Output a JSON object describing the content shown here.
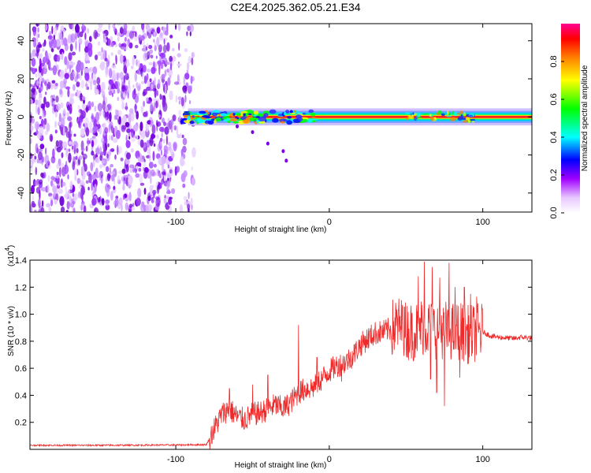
{
  "chart_data": [
    {
      "type": "heatmap",
      "title": "C2E4.2025.362.05.21.E34",
      "xlabel": "Height of straight line (km)",
      "ylabel": "Frequency (Hz)",
      "xlim": [
        -195,
        132
      ],
      "ylim": [
        -50,
        49
      ],
      "xticks": [
        -100,
        0,
        100
      ],
      "xtick_labels": [
        "-100",
        "0",
        "100"
      ],
      "yticks": [
        -40,
        -20,
        0,
        20,
        40
      ],
      "ytick_labels": [
        "-40",
        "-20",
        "0",
        "20",
        "40"
      ],
      "signal": {
        "description_values": "scattered purple speckles below -92 km; strong tonal line at 0 Hz from -95 km to right edge",
        "noise_x_range": [
          -195,
          -88
        ],
        "tone_x_range": [
          -95,
          132
        ],
        "tone_frequency": 0,
        "chirp_points": [
          [
            -60,
            -5
          ],
          [
            -50,
            -8
          ],
          [
            -40,
            -14
          ],
          [
            -30,
            -18
          ],
          [
            -28,
            -23
          ]
        ]
      },
      "colorbar": {
        "label": "Normalized spectral amplitude",
        "range": [
          0,
          1
        ],
        "ticks": [
          0.0,
          0.2,
          0.4,
          0.6,
          0.8
        ],
        "tick_labels": [
          "0.0",
          "0.2",
          "0.4",
          "0.6",
          "0.8"
        ],
        "colors": [
          "#ffffff",
          "#b000ff",
          "#0000ff",
          "#00ffff",
          "#00ff00",
          "#ffff00",
          "#ff8000",
          "#ff0000",
          "#ff0080"
        ]
      }
    },
    {
      "type": "line",
      "xlabel": "Height of straight line (km)",
      "ylabel": "SNR (10 * v/v)",
      "exponent_label": "(x10",
      "exponent_power": "4",
      "exponent_close": ")",
      "xlim": [
        -195,
        132
      ],
      "ylim": [
        0,
        14000
      ],
      "xticks": [
        -100,
        0,
        100
      ],
      "xtick_labels": [
        "-100",
        "0",
        "100"
      ],
      "yticks": [
        2000,
        4000,
        6000,
        8000,
        10000,
        12000,
        14000
      ],
      "ytick_labels": [
        "0.2",
        "0.4",
        "0.6",
        "0.8",
        "1.0",
        "1.2",
        "1.4"
      ],
      "color": "#ee2a2a",
      "x": [
        -195,
        -150,
        -100,
        -80,
        -75,
        -70,
        -65,
        -60,
        -55,
        -50,
        -45,
        -40,
        -35,
        -30,
        -25,
        -20,
        -15,
        -10,
        -5,
        0,
        5,
        10,
        15,
        20,
        25,
        30,
        35,
        40,
        45,
        50,
        55,
        60,
        65,
        70,
        75,
        80,
        85,
        90,
        95,
        100,
        105,
        110,
        115,
        120,
        125,
        132
      ],
      "values": [
        300,
        300,
        320,
        350,
        1500,
        2600,
        3000,
        2400,
        2200,
        2600,
        2700,
        3000,
        3300,
        3000,
        3500,
        4200,
        4500,
        4600,
        5200,
        5800,
        6200,
        6400,
        6900,
        7700,
        8200,
        8600,
        8700,
        8900,
        9200,
        8800,
        8700,
        9100,
        9000,
        8800,
        8900,
        8700,
        8800,
        8500,
        8600,
        8700,
        8400,
        8300,
        8250,
        8200,
        8300,
        8250
      ],
      "spikes": [
        [
          -65,
          4500
        ],
        [
          -50,
          4800
        ],
        [
          -40,
          5500
        ],
        [
          -20,
          9200
        ],
        [
          -8,
          6800
        ],
        [
          8,
          5000
        ],
        [
          25,
          8100
        ],
        [
          40,
          9000
        ],
        [
          48,
          10500
        ],
        [
          58,
          12800
        ],
        [
          62,
          13900
        ],
        [
          67,
          13500
        ],
        [
          72,
          12700
        ],
        [
          78,
          13800
        ],
        [
          82,
          12000
        ],
        [
          88,
          12000
        ],
        [
          92,
          11500
        ],
        [
          96,
          11300
        ],
        [
          75,
          3200
        ],
        [
          70,
          4200
        ],
        [
          66,
          5200
        ],
        [
          85,
          5300
        ],
        [
          55,
          6600
        ]
      ]
    }
  ]
}
